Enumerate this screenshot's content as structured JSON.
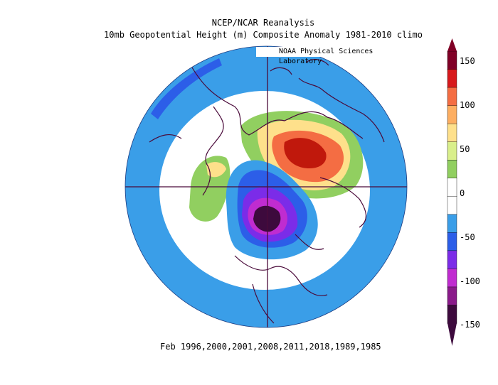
{
  "title": {
    "line1": "NCEP/NCAR Reanalysis",
    "line2": "10mb Geopotential Height (m) Composite Anomaly 1981-2010 climo"
  },
  "credit": "NOAA Physical Sciences Laboratory",
  "caption": "Feb 1996,2000,2001,2008,2011,2018,1989,1985",
  "colorbar": {
    "labels": [
      "150",
      "100",
      "50",
      "0",
      "-50",
      "-100",
      "-150"
    ],
    "colors": [
      "#800026",
      "#d7191c",
      "#f46d43",
      "#fdae61",
      "#fee08b",
      "#d9ef8b",
      "#91cf60",
      "#ffffff",
      "#ffffff",
      "#3a9ee8",
      "#2c5ee8",
      "#7b2ce8",
      "#c02cd0",
      "#8a1a8a",
      "#3d0a3d"
    ]
  },
  "map_colors": {
    "ring_outer": "#3a9ee8",
    "neutral": "#ffffff",
    "positive_light": "#91cf60",
    "positive_mid": "#fee08b",
    "positive_high": "#f46d43",
    "positive_peak": "#c0180c",
    "negative_light": "#3a9ee8",
    "negative_mid": "#2c5ee8",
    "negative_strong": "#7b2ce8",
    "negative_peak": "#3d0a3d",
    "coastline": "#4a0a3a"
  }
}
